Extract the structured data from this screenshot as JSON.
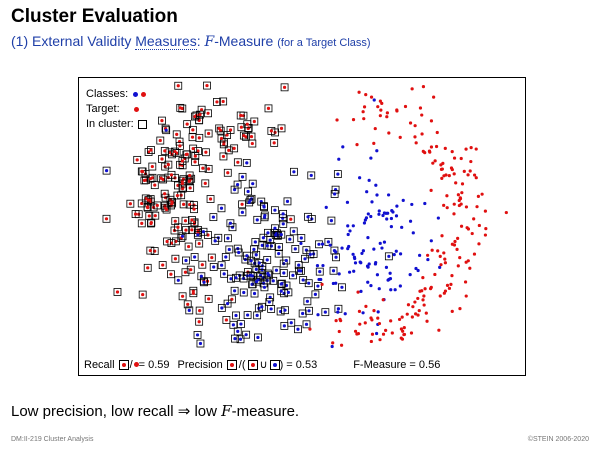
{
  "title": "Cluster Evaluation",
  "subtitle": {
    "prefix": "(1) External Validity ",
    "link": "Measures",
    "colon": ": ",
    "f": "F",
    "suffix": "-Measure",
    "small": "(for a Target Class)"
  },
  "legend": {
    "classes_label": "Classes:",
    "target_label": "Target:",
    "in_cluster_label": "In cluster:"
  },
  "metrics": {
    "recall_label": "Recall",
    "slash": "/",
    "recall_value": "= 0.59",
    "precision_label": "Precision",
    "open_paren": "/(",
    "union": "∪",
    "precision_value": ") = 0.53",
    "fmeasure_text": "F-Measure = 0.56"
  },
  "statement": {
    "prefix": "Low precision, low recall  ⇒ low ",
    "f": "F",
    "suffix": "-measure."
  },
  "footer": {
    "left": "DM:II-219   Cluster Analysis",
    "right": "©STEIN 2006-2020"
  },
  "colors": {
    "blue_class": "#1010d0",
    "red_target": "#e01010",
    "subtitle": "#1f3fa8"
  },
  "icons": [
    "blue-dot-icon",
    "red-dot-icon",
    "cluster-square-icon",
    "union-icon"
  ]
}
